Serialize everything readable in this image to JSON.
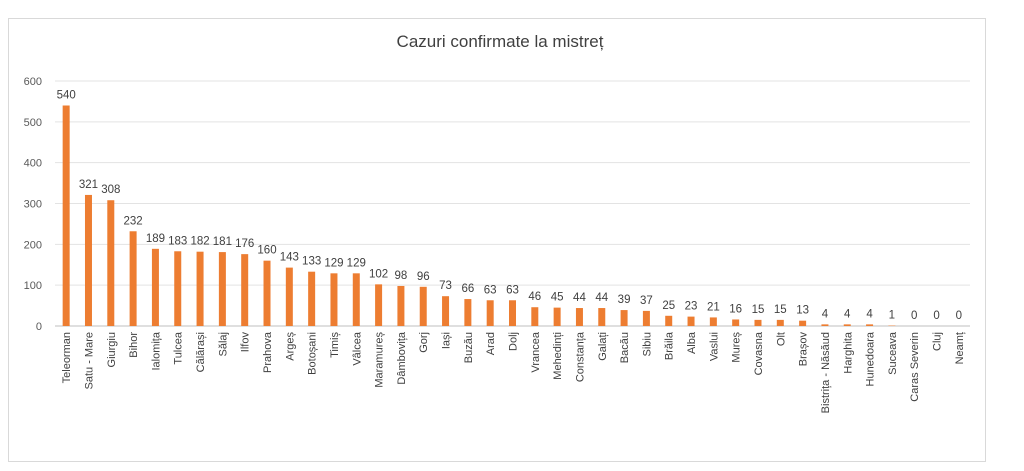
{
  "chart_data": {
    "type": "bar",
    "title": "Cazuri confirmate la mistreț",
    "xlabel": "",
    "ylabel": "",
    "ylim": [
      0,
      600
    ],
    "yticks": [
      0,
      100,
      200,
      300,
      400,
      500,
      600
    ],
    "grid": "horizontal",
    "bar_color": "#ED7D31",
    "categories": [
      "Teleorman",
      "Satu - Mare",
      "Giurgiu",
      "Bihor",
      "Ialomița",
      "Tulcea",
      "Călărași",
      "Sălaj",
      "Ilfov",
      "Prahova",
      "Argeș",
      "Botoșani",
      "Timiș",
      "Vâlcea",
      "Maramureș",
      "Dâmbovița",
      "Gorj",
      "Iași",
      "Buzău",
      "Arad",
      "Dolj",
      "Vrancea",
      "Mehedinți",
      "Constanța",
      "Galați",
      "Bacău",
      "Sibiu",
      "Brăila",
      "Alba",
      "Vaslui",
      "Mureș",
      "Covasna",
      "Olt",
      "Brașov",
      "Bistrița - Năsăud",
      "Harghita",
      "Hunedoara",
      "Suceava",
      "Caras Severin",
      "Cluj",
      "Neamț"
    ],
    "values": [
      540,
      321,
      308,
      232,
      189,
      183,
      182,
      181,
      176,
      160,
      143,
      133,
      129,
      129,
      102,
      98,
      96,
      73,
      66,
      63,
      63,
      46,
      45,
      44,
      44,
      39,
      37,
      25,
      23,
      21,
      16,
      15,
      15,
      13,
      4,
      4,
      4,
      1,
      0,
      0,
      0
    ]
  }
}
